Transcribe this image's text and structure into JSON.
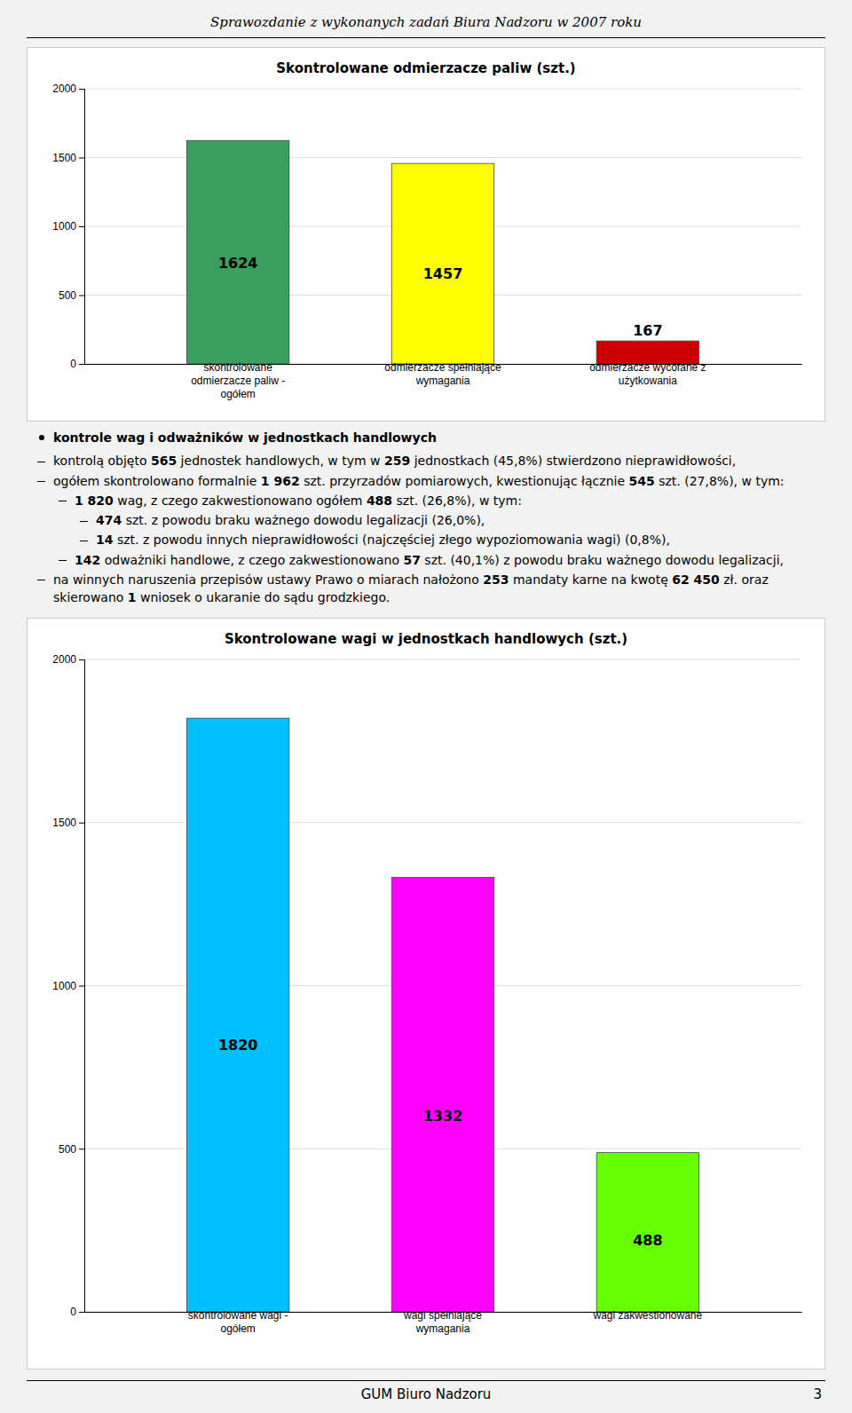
{
  "page_title": "Sprawozdanie z wykonanych zadań Biura Nadzoru w 2007 roku",
  "footer": "GUM Biuro Nadzoru",
  "page_number": "3",
  "chart_data": [
    {
      "type": "bar",
      "title": "Skontrolowane odmierzacze paliw (szt.)",
      "categories": [
        "skontrolowane\nodmierzacze paliw -\nogółem",
        "odmierzacze spełniające\nwymagania",
        "odmierzacze wycofane z\nużytkowania"
      ],
      "values": [
        1624,
        1457,
        167
      ],
      "colors": [
        "#3a9e5f",
        "#ffff00",
        "#cc0000"
      ],
      "ylim": [
        0,
        2000
      ],
      "yticks": [
        0,
        500,
        1000,
        1500,
        2000
      ],
      "grid": true,
      "data_labels": true
    },
    {
      "type": "bar",
      "title": "Skontrolowane wagi w jednostkach handlowych (szt.)",
      "categories": [
        "skontrolowane wagi -\nogółem",
        "wagi spełniające\nwymagania",
        "wagi zakwestionowane"
      ],
      "values": [
        1820,
        1332,
        488
      ],
      "colors": [
        "#00bfff",
        "#ff00ff",
        "#66ff00"
      ],
      "ylim": [
        0,
        2000
      ],
      "yticks": [
        0,
        500,
        1000,
        1500,
        2000
      ],
      "grid": true,
      "data_labels": true
    }
  ],
  "text_lines": [
    {
      "type": "bullet_bold",
      "text": "kontrole wag i odważników w jednostkach handlowych"
    },
    {
      "type": "dash",
      "indent": 0,
      "segments": [
        {
          "bold": false,
          "text": "kontrolą objęto "
        },
        {
          "bold": true,
          "text": "565"
        },
        {
          "bold": false,
          "text": " jednostek handlowych, w tym w "
        },
        {
          "bold": true,
          "text": "259"
        },
        {
          "bold": false,
          "text": " jednostkach (45,8%) stwierdzono nieprawidłowości,"
        }
      ]
    },
    {
      "type": "dash",
      "indent": 0,
      "segments": [
        {
          "bold": false,
          "text": "ogółem skontrolowano formalnie "
        },
        {
          "bold": true,
          "text": "1 962"
        },
        {
          "bold": false,
          "text": " szt. przyrzadów pomiarowych, kwestionując łącznie "
        },
        {
          "bold": true,
          "text": "545"
        },
        {
          "bold": false,
          "text": " szt. (27,8%), w tym:"
        }
      ]
    },
    {
      "type": "dash",
      "indent": 1,
      "segments": [
        {
          "bold": true,
          "text": "1 820"
        },
        {
          "bold": false,
          "text": " wag, z czego zakwestionowano ogółem "
        },
        {
          "bold": true,
          "text": "488"
        },
        {
          "bold": false,
          "text": " szt. (26,8%), w tym:"
        }
      ]
    },
    {
      "type": "dash",
      "indent": 2,
      "segments": [
        {
          "bold": true,
          "text": "474"
        },
        {
          "bold": false,
          "text": " szt. z powodu braku ważnego dowodu legalizacji (26,0%),"
        }
      ]
    },
    {
      "type": "dash",
      "indent": 2,
      "segments": [
        {
          "bold": true,
          "text": "14"
        },
        {
          "bold": false,
          "text": " szt. z powodu innych nieprawidłowości (najczęściej złego wypoziomowania wagi) (0,8%),"
        }
      ]
    },
    {
      "type": "dash",
      "indent": 1,
      "segments": [
        {
          "bold": true,
          "text": "142"
        },
        {
          "bold": false,
          "text": " odważniki handlowe, z czego zakwestionowano "
        },
        {
          "bold": true,
          "text": "57"
        },
        {
          "bold": false,
          "text": " szt. (40,1%) z powodu braku ważnego dowodu legalizacji,"
        }
      ]
    },
    {
      "type": "dash",
      "indent": 0,
      "segments": [
        {
          "bold": false,
          "text": "na winnych naruszenia przepisów ustawy Prawo o miarach nałożono "
        },
        {
          "bold": true,
          "text": "253"
        },
        {
          "bold": false,
          "text": " mandaty karne na kwotę "
        },
        {
          "bold": true,
          "text": "62 450"
        },
        {
          "bold": false,
          "text": " zł. oraz skierowano "
        },
        {
          "bold": true,
          "text": "1"
        },
        {
          "bold": false,
          "text": " wniosek o ukaranie do sądu grodzkiego."
        }
      ]
    }
  ]
}
